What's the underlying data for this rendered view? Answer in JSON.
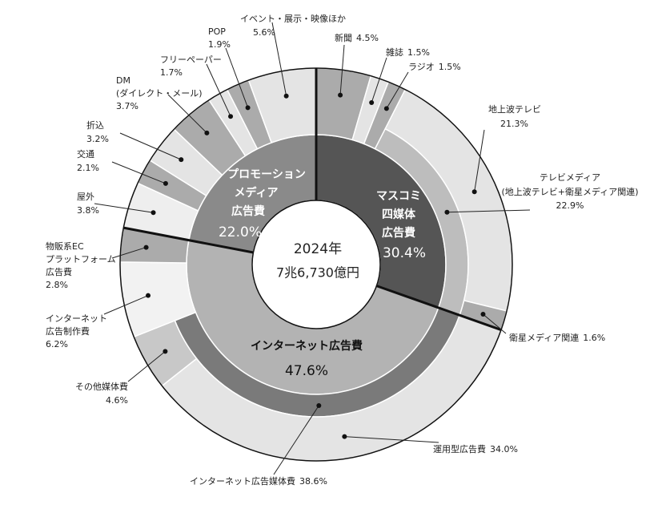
{
  "chart_data": {
    "type": "sunburst",
    "center_text": [
      "2024年",
      "7兆6,730億円"
    ],
    "groups": [
      {
        "name": [
          "マスコミ",
          "四媒体",
          "広告費"
        ],
        "value": 30.4,
        "value_label": "30.4%",
        "color": "#555555",
        "children": [
          {
            "name": [
              "新聞"
            ],
            "value": 4.5,
            "value_label": "4.5%",
            "color": "#ababab"
          },
          {
            "name": [
              "雑誌"
            ],
            "value": 1.5,
            "value_label": "1.5%",
            "color": "#e4e4e4"
          },
          {
            "name": [
              "ラジオ"
            ],
            "value": 1.5,
            "value_label": "1.5%",
            "color": "#ababab"
          },
          {
            "name": [
              "テレビメディア",
              "(地上波テレビ+衛星メディア関連)"
            ],
            "value": 22.9,
            "value_label": "22.9%",
            "color": "#bdbdbd",
            "children": [
              {
                "name": [
                  "地上波テレビ"
                ],
                "value": 21.3,
                "value_label": "21.3%",
                "color": "#e4e4e4"
              },
              {
                "name": [
                  "衛星メディア関連"
                ],
                "value": 1.6,
                "value_label": "1.6%",
                "color": "#ababab"
              }
            ]
          }
        ]
      },
      {
        "name": [
          "インターネット広告費"
        ],
        "value": 47.6,
        "value_label": "47.6%",
        "color": "#b3b3b3",
        "children": [
          {
            "name": [
              "インターネット広告媒体費"
            ],
            "value": 38.6,
            "value_label": "38.6%",
            "color": "#7a7a7a",
            "children": [
              {
                "name": [
                  "運用型広告費"
                ],
                "value": 34.0,
                "value_label": "34.0%",
                "color": "#e4e4e4"
              },
              {
                "name": [
                  "その他媒体費"
                ],
                "value": 4.6,
                "value_label": "4.6%",
                "color": "#c8c8c8"
              }
            ]
          },
          {
            "name": [
              "インターネット",
              "広告制作費"
            ],
            "value": 6.2,
            "value_label": "6.2%",
            "color": "#f2f2f2"
          },
          {
            "name": [
              "物販系EC",
              "プラットフォーム",
              "広告費"
            ],
            "value": 2.8,
            "value_label": "2.8%",
            "color": "#ababab"
          }
        ]
      },
      {
        "name": [
          "プロモーション",
          "メディア",
          "広告費"
        ],
        "value": 22.0,
        "value_label": "22.0%",
        "color": "#8a8a8a",
        "children": [
          {
            "name": [
              "屋外"
            ],
            "value": 3.8,
            "value_label": "3.8%",
            "color": "#eeeeee"
          },
          {
            "name": [
              "交通"
            ],
            "value": 2.1,
            "value_label": "2.1%",
            "color": "#ababab"
          },
          {
            "name": [
              "折込"
            ],
            "value": 3.2,
            "value_label": "3.2%",
            "color": "#e4e4e4"
          },
          {
            "name": [
              "DM",
              "(ダイレクト・メール)"
            ],
            "value": 3.7,
            "value_label": "3.7%",
            "color": "#ababab"
          },
          {
            "name": [
              "フリーペーパー"
            ],
            "value": 1.7,
            "value_label": "1.7%",
            "color": "#e4e4e4"
          },
          {
            "name": [
              "POP"
            ],
            "value": 1.9,
            "value_label": "1.9%",
            "color": "#ababab"
          },
          {
            "name": [
              "イベント・展示・映像ほか"
            ],
            "value": 5.6,
            "value_label": "5.6%",
            "color": "#e4e4e4"
          }
        ]
      }
    ]
  }
}
